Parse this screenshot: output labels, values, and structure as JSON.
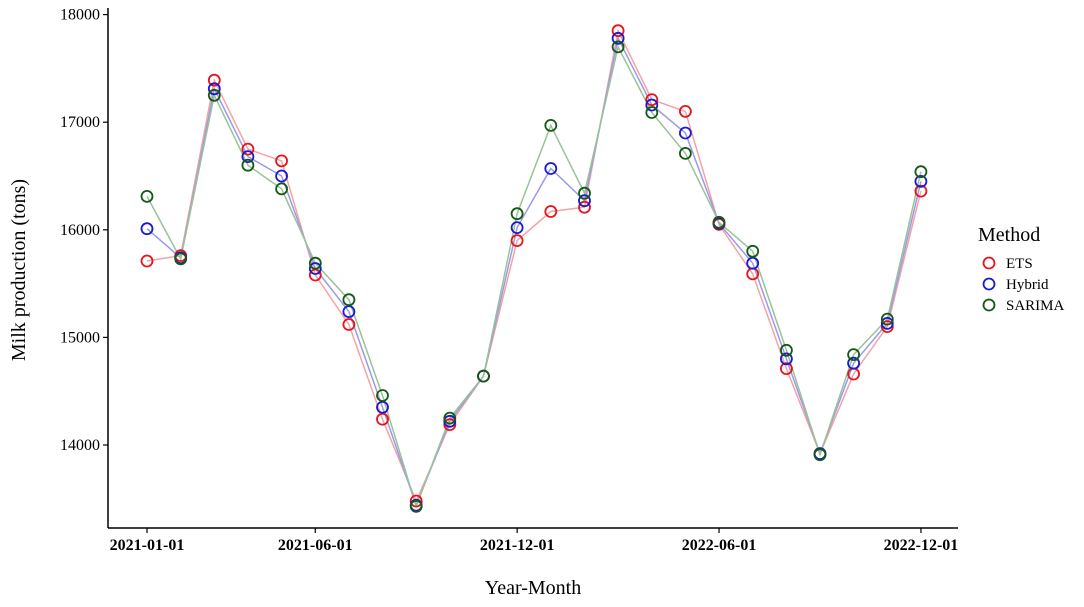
{
  "chart_data": {
    "type": "line",
    "xlabel": "Year-Month",
    "ylabel": "Milk production (tons)",
    "x": [
      "2021-01-01",
      "2021-02-01",
      "2021-03-01",
      "2021-04-01",
      "2021-05-01",
      "2021-06-01",
      "2021-07-01",
      "2021-08-01",
      "2021-09-01",
      "2021-10-01",
      "2021-11-01",
      "2021-12-01",
      "2022-01-01",
      "2022-02-01",
      "2022-03-01",
      "2022-04-01",
      "2022-05-01",
      "2022-06-01",
      "2022-07-01",
      "2022-08-01",
      "2022-09-01",
      "2022-10-01",
      "2022-11-01",
      "2022-12-01"
    ],
    "x_ticks": [
      "2021-01-01",
      "2021-06-01",
      "2021-12-01",
      "2022-06-01",
      "2022-12-01"
    ],
    "ylim": [
      13250,
      18100
    ],
    "y_ticks": [
      14000,
      15000,
      16000,
      17000,
      18000
    ],
    "legend_title": "Method",
    "legend_position": "right",
    "grid": false,
    "series": [
      {
        "name": "ETS",
        "color": "#e8141a",
        "line_color": "#f4a3a5",
        "values": [
          15710,
          15760,
          17390,
          16750,
          16640,
          15580,
          15120,
          14240,
          13480,
          14190,
          14640,
          15900,
          16170,
          16210,
          17850,
          17210,
          17100,
          16050,
          15590,
          14710,
          13920,
          14660,
          15100,
          16360
        ]
      },
      {
        "name": "Hybrid",
        "color": "#1a1ad0",
        "line_color": "#9a9aea",
        "values": [
          16010,
          15740,
          17310,
          16680,
          16500,
          15640,
          15240,
          14350,
          13440,
          14220,
          14640,
          16020,
          16570,
          16270,
          17780,
          17160,
          16900,
          16060,
          15690,
          14800,
          13920,
          14760,
          15130,
          16450
        ]
      },
      {
        "name": "SARIMA",
        "color": "#145a14",
        "line_color": "#98c398",
        "values": [
          16310,
          15730,
          17250,
          16600,
          16380,
          15690,
          15350,
          14460,
          13430,
          14250,
          14640,
          16150,
          16970,
          16340,
          17700,
          17090,
          16710,
          16070,
          15800,
          14880,
          13910,
          14840,
          15170,
          16540
        ]
      }
    ]
  }
}
